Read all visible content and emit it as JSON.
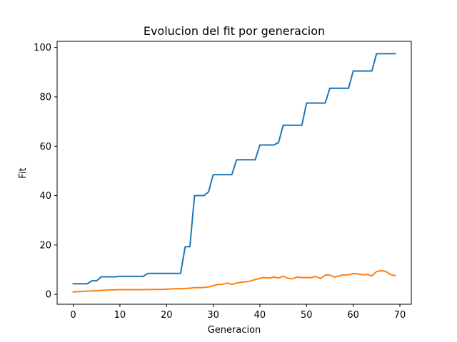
{
  "chart_data": {
    "type": "line",
    "title": "Evolucion del fit por generacion",
    "xlabel": "Generacion",
    "ylabel": "Fit",
    "xlim": [
      -3.45,
      72.45
    ],
    "ylim": [
      -4,
      102.5
    ],
    "xticks": [
      0,
      10,
      20,
      30,
      40,
      50,
      60,
      70
    ],
    "yticks": [
      0,
      20,
      40,
      60,
      80,
      100
    ],
    "grid": false,
    "legend": "none",
    "series": [
      {
        "color": "#1f77b4",
        "values": [
          4.3,
          4.3,
          4.3,
          4.3,
          5.5,
          5.5,
          7.1,
          7.1,
          7.1,
          7.1,
          7.3,
          7.3,
          7.3,
          7.3,
          7.3,
          7.3,
          8.5,
          8.5,
          8.5,
          8.5,
          8.5,
          8.5,
          8.5,
          8.5,
          19.3,
          19.3,
          40.0,
          40.0,
          40.0,
          41.5,
          48.5,
          48.5,
          48.5,
          48.5,
          48.5,
          54.5,
          54.5,
          54.5,
          54.5,
          54.5,
          60.5,
          60.5,
          60.5,
          60.5,
          61.5,
          68.5,
          68.5,
          68.5,
          68.5,
          68.5,
          77.5,
          77.5,
          77.5,
          77.5,
          77.5,
          83.5,
          83.5,
          83.5,
          83.5,
          83.5,
          90.5,
          90.5,
          90.5,
          90.5,
          90.5,
          97.5,
          97.5,
          97.5,
          97.5,
          97.5
        ]
      },
      {
        "color": "#ff7f0e",
        "values": [
          1.0,
          1.1,
          1.2,
          1.3,
          1.4,
          1.5,
          1.6,
          1.7,
          1.8,
          1.8,
          1.9,
          1.9,
          1.9,
          1.9,
          1.9,
          1.9,
          2.0,
          2.0,
          2.0,
          2.0,
          2.1,
          2.2,
          2.3,
          2.3,
          2.4,
          2.5,
          2.7,
          2.7,
          2.8,
          3.0,
          3.5,
          4.0,
          4.1,
          4.6,
          4.0,
          4.6,
          4.9,
          5.1,
          5.4,
          6.0,
          6.5,
          6.8,
          6.6,
          7.0,
          6.6,
          7.4,
          6.5,
          6.3,
          7.0,
          6.8,
          6.8,
          6.8,
          7.3,
          6.4,
          7.8,
          7.8,
          7.0,
          7.5,
          7.9,
          7.9,
          8.4,
          8.3,
          7.9,
          8.1,
          7.5,
          9.2,
          9.6,
          9.3,
          8.0,
          7.6
        ]
      }
    ]
  }
}
